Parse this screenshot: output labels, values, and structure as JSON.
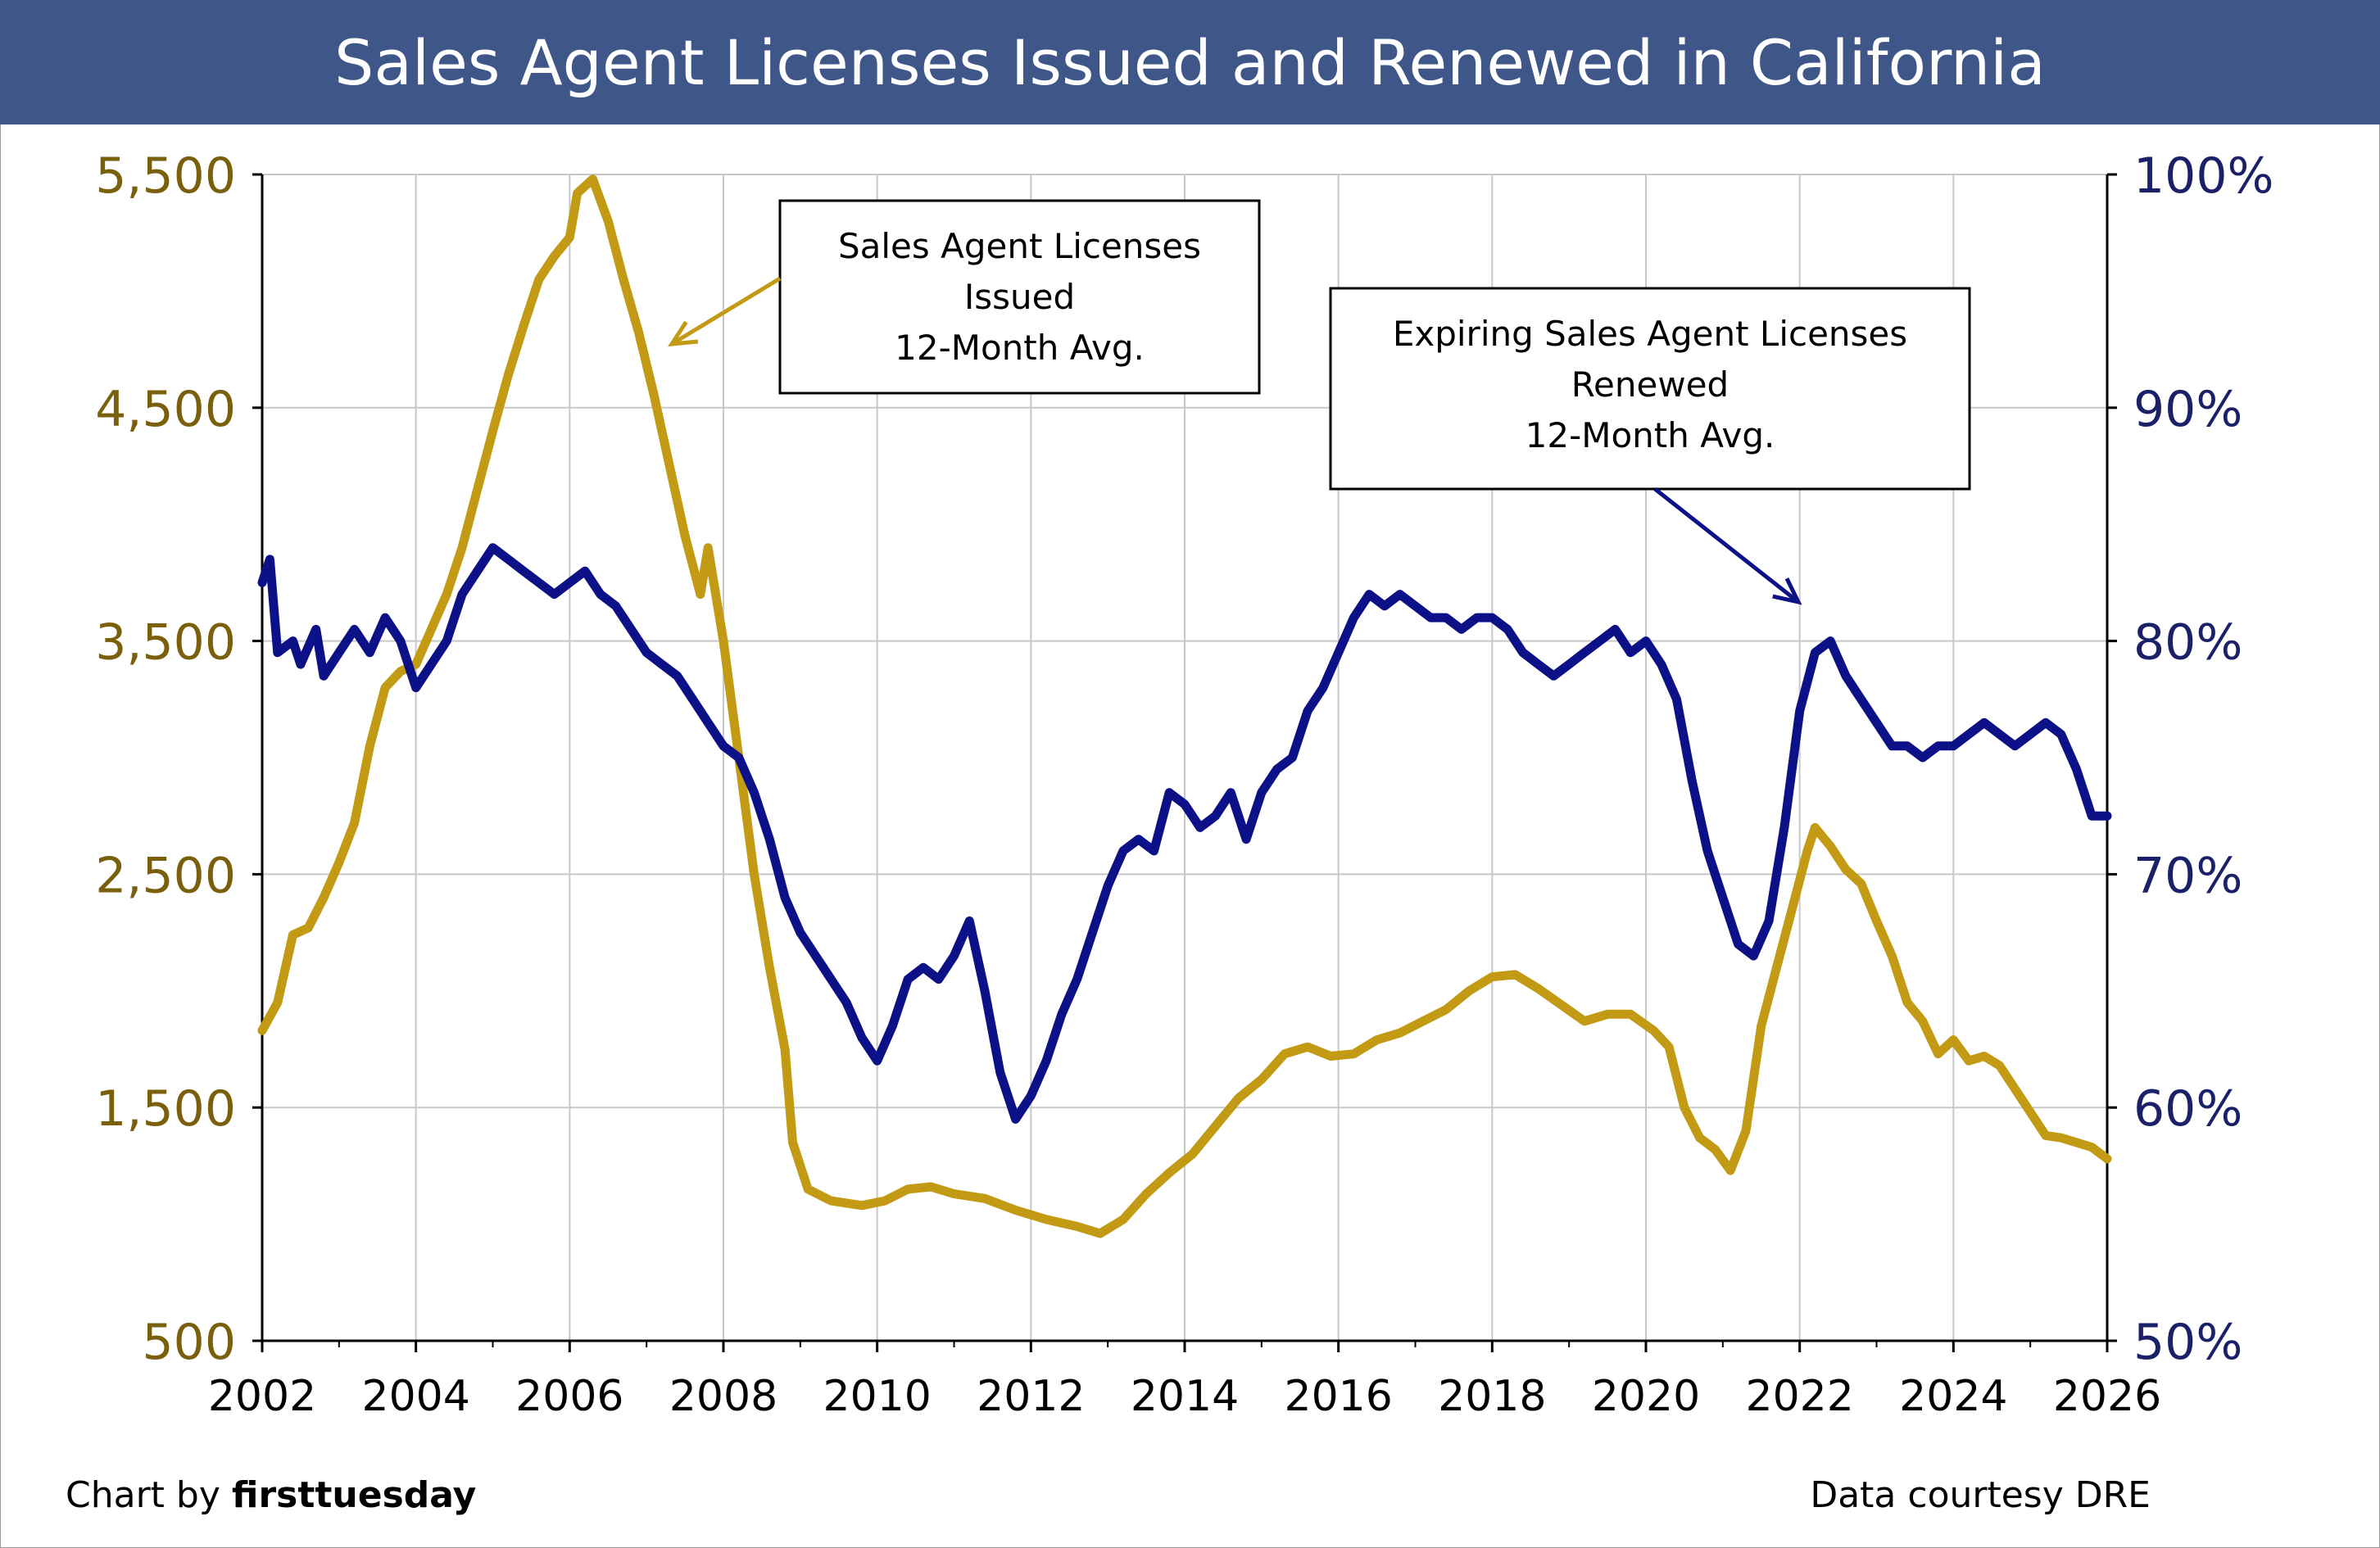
{
  "title": "Sales Agent Licenses Issued and Renewed in California",
  "credit_prefix": "Chart by ",
  "credit_brand": "firsttuesday",
  "source": "Data courtesy DRE",
  "colors": {
    "title_bg": "#3f5689",
    "issued": "#c29a14",
    "renewed": "#0d1187",
    "left_axis": "#7a5f0c",
    "right_axis": "#1b2168",
    "grid": "#c8c8c8"
  },
  "chart_data": {
    "type": "line",
    "title": "Sales Agent Licenses Issued and Renewed in California",
    "x_ticks": [
      "2002",
      "2004",
      "2006",
      "2008",
      "2010",
      "2012",
      "2014",
      "2016",
      "2018",
      "2020",
      "2022",
      "2024",
      "2026"
    ],
    "xlim": [
      2002,
      2026
    ],
    "y_left": {
      "ticks": [
        "5,500",
        "4,500",
        "3,500",
        "2,500",
        "1,500",
        "500"
      ],
      "range": [
        500,
        5500
      ]
    },
    "y_right": {
      "ticks": [
        "100%",
        "90%",
        "80%",
        "70%",
        "60%",
        "50%"
      ],
      "range": [
        50,
        100
      ]
    },
    "grid": true,
    "series": [
      {
        "name": "Sales Agent Licenses Issued 12-Month Avg.",
        "axis": "left",
        "points": [
          [
            2002.0,
            1830
          ],
          [
            2002.2,
            1950
          ],
          [
            2002.4,
            2240
          ],
          [
            2002.6,
            2270
          ],
          [
            2002.8,
            2400
          ],
          [
            2003.0,
            2550
          ],
          [
            2003.2,
            2720
          ],
          [
            2003.4,
            3050
          ],
          [
            2003.6,
            3300
          ],
          [
            2003.8,
            3370
          ],
          [
            2004.0,
            3400
          ],
          [
            2004.2,
            3550
          ],
          [
            2004.4,
            3700
          ],
          [
            2004.6,
            3900
          ],
          [
            2004.8,
            4150
          ],
          [
            2005.0,
            4400
          ],
          [
            2005.2,
            4640
          ],
          [
            2005.4,
            4850
          ],
          [
            2005.6,
            5050
          ],
          [
            2005.8,
            5150
          ],
          [
            2006.0,
            5230
          ],
          [
            2006.1,
            5420
          ],
          [
            2006.3,
            5480
          ],
          [
            2006.5,
            5300
          ],
          [
            2006.7,
            5050
          ],
          [
            2006.9,
            4820
          ],
          [
            2007.1,
            4550
          ],
          [
            2007.3,
            4250
          ],
          [
            2007.5,
            3950
          ],
          [
            2007.7,
            3700
          ],
          [
            2007.8,
            3900
          ],
          [
            2008.0,
            3500
          ],
          [
            2008.2,
            3000
          ],
          [
            2008.4,
            2500
          ],
          [
            2008.6,
            2100
          ],
          [
            2008.8,
            1750
          ],
          [
            2008.9,
            1350
          ],
          [
            2009.1,
            1150
          ],
          [
            2009.4,
            1100
          ],
          [
            2009.8,
            1080
          ],
          [
            2010.1,
            1100
          ],
          [
            2010.4,
            1150
          ],
          [
            2010.7,
            1160
          ],
          [
            2011.0,
            1130
          ],
          [
            2011.4,
            1110
          ],
          [
            2011.8,
            1060
          ],
          [
            2012.2,
            1020
          ],
          [
            2012.6,
            990
          ],
          [
            2012.9,
            960
          ],
          [
            2013.2,
            1020
          ],
          [
            2013.5,
            1130
          ],
          [
            2013.8,
            1220
          ],
          [
            2014.1,
            1300
          ],
          [
            2014.4,
            1420
          ],
          [
            2014.7,
            1540
          ],
          [
            2015.0,
            1620
          ],
          [
            2015.3,
            1730
          ],
          [
            2015.6,
            1760
          ],
          [
            2015.9,
            1720
          ],
          [
            2016.2,
            1730
          ],
          [
            2016.5,
            1790
          ],
          [
            2016.8,
            1820
          ],
          [
            2017.1,
            1870
          ],
          [
            2017.4,
            1920
          ],
          [
            2017.7,
            2000
          ],
          [
            2018.0,
            2060
          ],
          [
            2018.3,
            2070
          ],
          [
            2018.6,
            2010
          ],
          [
            2018.9,
            1940
          ],
          [
            2019.2,
            1870
          ],
          [
            2019.5,
            1900
          ],
          [
            2019.8,
            1900
          ],
          [
            2020.1,
            1830
          ],
          [
            2020.3,
            1760
          ],
          [
            2020.5,
            1500
          ],
          [
            2020.7,
            1370
          ],
          [
            2020.9,
            1320
          ],
          [
            2021.1,
            1230
          ],
          [
            2021.3,
            1400
          ],
          [
            2021.5,
            1850
          ],
          [
            2021.7,
            2100
          ],
          [
            2021.9,
            2350
          ],
          [
            2022.1,
            2600
          ],
          [
            2022.2,
            2700
          ],
          [
            2022.4,
            2620
          ],
          [
            2022.6,
            2520
          ],
          [
            2022.8,
            2460
          ],
          [
            2023.0,
            2300
          ],
          [
            2023.2,
            2150
          ],
          [
            2023.4,
            1950
          ],
          [
            2023.6,
            1870
          ],
          [
            2023.8,
            1730
          ],
          [
            2024.0,
            1790
          ],
          [
            2024.2,
            1700
          ],
          [
            2024.4,
            1720
          ],
          [
            2024.6,
            1680
          ],
          [
            2024.8,
            1580
          ],
          [
            2025.0,
            1480
          ],
          [
            2025.2,
            1380
          ],
          [
            2025.4,
            1370
          ],
          [
            2025.6,
            1350
          ],
          [
            2025.8,
            1330
          ],
          [
            2026.0,
            1280
          ]
        ]
      },
      {
        "name": "Expiring Sales Agent Licenses Renewed 12-Month Avg.",
        "axis": "right",
        "points": [
          [
            2002.0,
            82.5
          ],
          [
            2002.1,
            83.5
          ],
          [
            2002.2,
            79.5
          ],
          [
            2002.4,
            80.0
          ],
          [
            2002.5,
            79.0
          ],
          [
            2002.7,
            80.5
          ],
          [
            2002.8,
            78.5
          ],
          [
            2003.0,
            79.5
          ],
          [
            2003.2,
            80.5
          ],
          [
            2003.4,
            79.5
          ],
          [
            2003.6,
            81.0
          ],
          [
            2003.8,
            80.0
          ],
          [
            2004.0,
            78.0
          ],
          [
            2004.2,
            79.0
          ],
          [
            2004.4,
            80.0
          ],
          [
            2004.6,
            82.0
          ],
          [
            2004.8,
            83.0
          ],
          [
            2005.0,
            84.0
          ],
          [
            2005.2,
            83.5
          ],
          [
            2005.4,
            83.0
          ],
          [
            2005.6,
            82.5
          ],
          [
            2005.8,
            82.0
          ],
          [
            2006.0,
            82.5
          ],
          [
            2006.2,
            83.0
          ],
          [
            2006.4,
            82.0
          ],
          [
            2006.6,
            81.5
          ],
          [
            2006.8,
            80.5
          ],
          [
            2007.0,
            79.5
          ],
          [
            2007.2,
            79.0
          ],
          [
            2007.4,
            78.5
          ],
          [
            2007.6,
            77.5
          ],
          [
            2007.8,
            76.5
          ],
          [
            2008.0,
            75.5
          ],
          [
            2008.2,
            75.0
          ],
          [
            2008.4,
            73.5
          ],
          [
            2008.6,
            71.5
          ],
          [
            2008.8,
            69.0
          ],
          [
            2009.0,
            67.5
          ],
          [
            2009.2,
            66.5
          ],
          [
            2009.4,
            65.5
          ],
          [
            2009.6,
            64.5
          ],
          [
            2009.8,
            63.0
          ],
          [
            2010.0,
            62.0
          ],
          [
            2010.2,
            63.5
          ],
          [
            2010.4,
            65.5
          ],
          [
            2010.6,
            66.0
          ],
          [
            2010.8,
            65.5
          ],
          [
            2011.0,
            66.5
          ],
          [
            2011.2,
            68.0
          ],
          [
            2011.4,
            65.0
          ],
          [
            2011.6,
            61.5
          ],
          [
            2011.8,
            59.5
          ],
          [
            2012.0,
            60.5
          ],
          [
            2012.2,
            62.0
          ],
          [
            2012.4,
            64.0
          ],
          [
            2012.6,
            65.5
          ],
          [
            2012.8,
            67.5
          ],
          [
            2013.0,
            69.5
          ],
          [
            2013.2,
            71.0
          ],
          [
            2013.4,
            71.5
          ],
          [
            2013.6,
            71.0
          ],
          [
            2013.8,
            73.5
          ],
          [
            2014.0,
            73.0
          ],
          [
            2014.2,
            72.0
          ],
          [
            2014.4,
            72.5
          ],
          [
            2014.6,
            73.5
          ],
          [
            2014.8,
            71.5
          ],
          [
            2015.0,
            73.5
          ],
          [
            2015.2,
            74.5
          ],
          [
            2015.4,
            75.0
          ],
          [
            2015.6,
            77.0
          ],
          [
            2015.8,
            78.0
          ],
          [
            2016.0,
            79.5
          ],
          [
            2016.2,
            81.0
          ],
          [
            2016.4,
            82.0
          ],
          [
            2016.6,
            81.5
          ],
          [
            2016.8,
            82.0
          ],
          [
            2017.0,
            81.5
          ],
          [
            2017.2,
            81.0
          ],
          [
            2017.4,
            81.0
          ],
          [
            2017.6,
            80.5
          ],
          [
            2017.8,
            81.0
          ],
          [
            2018.0,
            81.0
          ],
          [
            2018.2,
            80.5
          ],
          [
            2018.4,
            79.5
          ],
          [
            2018.6,
            79.0
          ],
          [
            2018.8,
            78.5
          ],
          [
            2019.0,
            79.0
          ],
          [
            2019.2,
            79.5
          ],
          [
            2019.4,
            80.0
          ],
          [
            2019.6,
            80.5
          ],
          [
            2019.8,
            79.5
          ],
          [
            2020.0,
            80.0
          ],
          [
            2020.2,
            79.0
          ],
          [
            2020.4,
            77.5
          ],
          [
            2020.6,
            74.0
          ],
          [
            2020.8,
            71.0
          ],
          [
            2021.0,
            69.0
          ],
          [
            2021.2,
            67.0
          ],
          [
            2021.4,
            66.5
          ],
          [
            2021.6,
            68.0
          ],
          [
            2021.8,
            72.0
          ],
          [
            2022.0,
            77.0
          ],
          [
            2022.2,
            79.5
          ],
          [
            2022.4,
            80.0
          ],
          [
            2022.6,
            78.5
          ],
          [
            2022.8,
            77.5
          ],
          [
            2023.0,
            76.5
          ],
          [
            2023.2,
            75.5
          ],
          [
            2023.4,
            75.5
          ],
          [
            2023.6,
            75.0
          ],
          [
            2023.8,
            75.5
          ],
          [
            2024.0,
            75.5
          ],
          [
            2024.2,
            76.0
          ],
          [
            2024.4,
            76.5
          ],
          [
            2024.6,
            76.0
          ],
          [
            2024.8,
            75.5
          ],
          [
            2025.0,
            76.0
          ],
          [
            2025.2,
            76.5
          ],
          [
            2025.4,
            76.0
          ],
          [
            2025.6,
            74.5
          ],
          [
            2025.8,
            72.5
          ],
          [
            2026.0,
            72.5
          ]
        ]
      }
    ],
    "annotations": [
      {
        "lines": [
          "Sales Agent Licenses",
          "Issued",
          "12-Month Avg."
        ]
      },
      {
        "lines": [
          "Expiring Sales Agent Licenses",
          "Renewed",
          "12-Month Avg."
        ]
      }
    ]
  }
}
